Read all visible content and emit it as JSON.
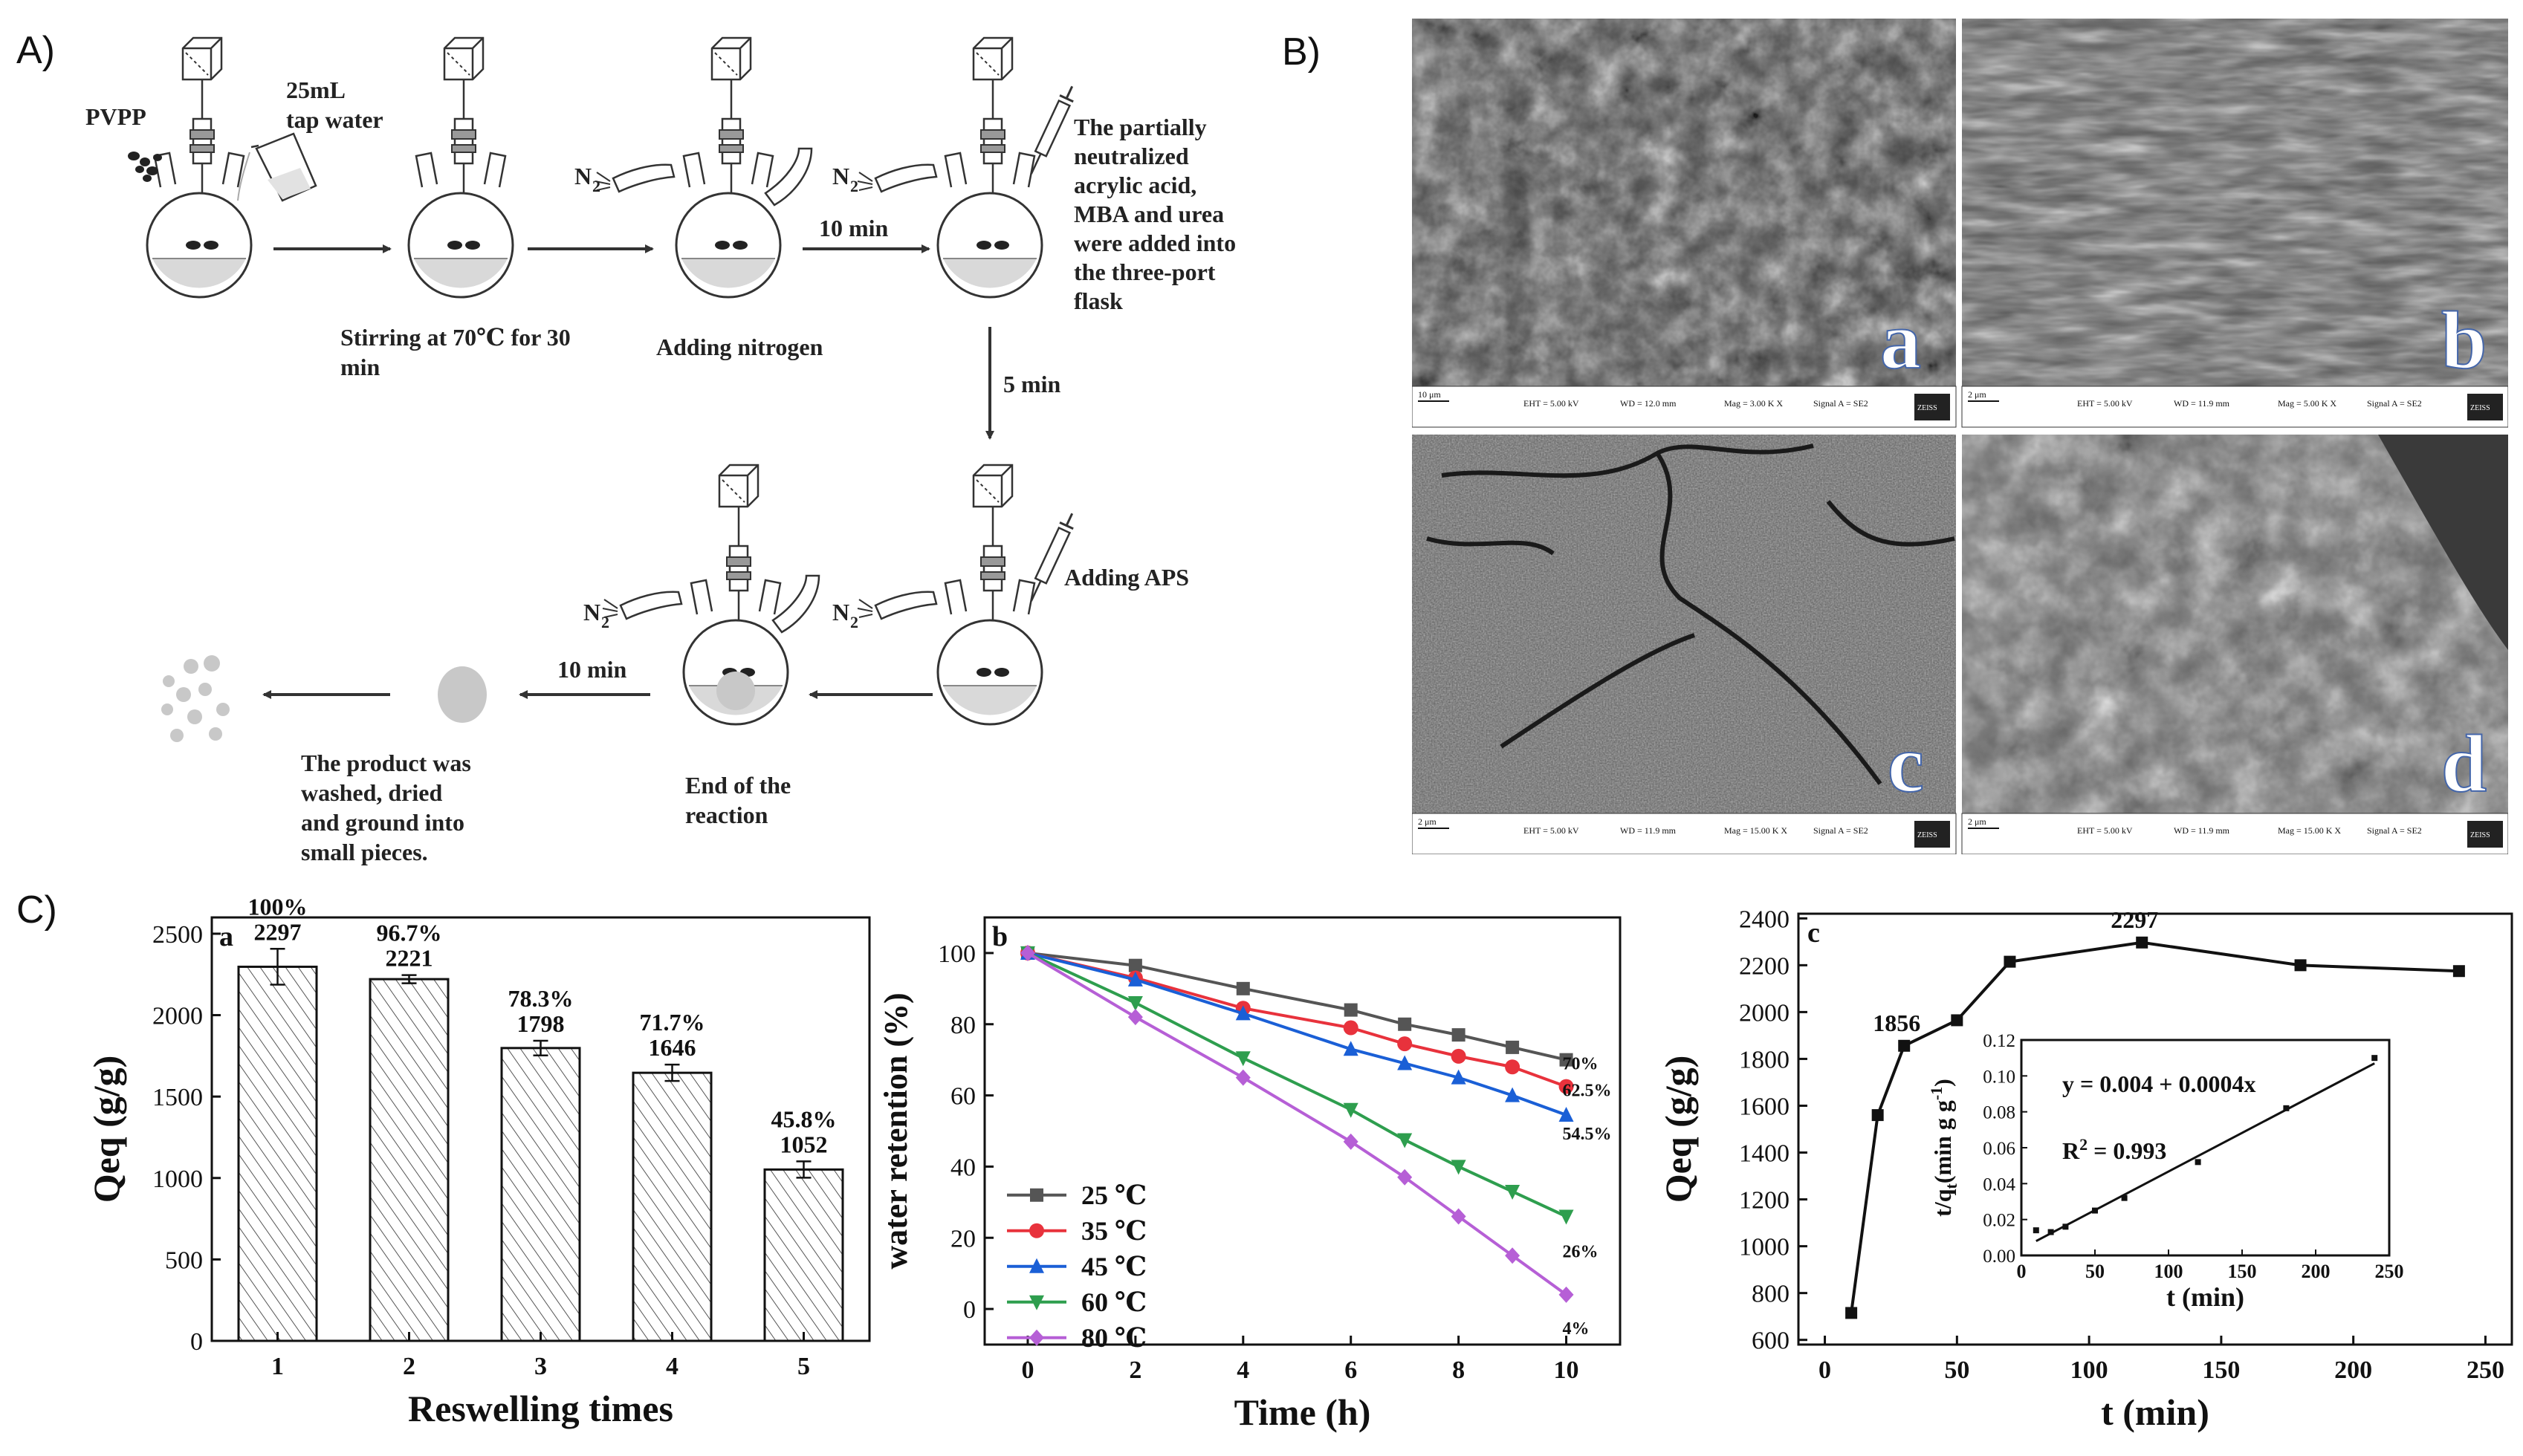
{
  "panels": {
    "A": "A)",
    "B": "B)",
    "C": "C)"
  },
  "scheme": {
    "pvpp": "PVPP",
    "water_line1": "25mL",
    "water_line2": "tap water",
    "n2": "N",
    "n2_sub": "2",
    "step1_line1": "Stirring at 70℃ for 30",
    "step1_line2": "min",
    "step2": "Adding nitrogen",
    "arrow_10min_a": "10 min",
    "step3_lines": [
      "The partially",
      "neutralized",
      "acrylic acid,",
      "MBA and urea",
      "were added into",
      "the three-port",
      "flask"
    ],
    "arrow_5min": "5 min",
    "step4": "Adding APS",
    "step5_line1": "End of the",
    "step5_line2": "reaction",
    "arrow_10min_b": "10 min",
    "step6_lines": [
      "The product was",
      "washed,    dried",
      "and ground into",
      "small pieces."
    ]
  },
  "sem": {
    "images": [
      {
        "letter": "a",
        "scalebar": "10 μm",
        "eht": "EHT =  5.00 kV",
        "wd": "WD = 12.0 mm",
        "mag": "Mag =   3.00 K X",
        "signal": "Signal A = SE2",
        "logo": "ZEISS"
      },
      {
        "letter": "b",
        "scalebar": "2 μm",
        "eht": "EHT =  5.00 kV",
        "wd": "WD = 11.9 mm",
        "mag": "Mag =   5.00 K X",
        "signal": "Signal A = SE2",
        "logo": "ZEISS"
      },
      {
        "letter": "c",
        "scalebar": "2 μm",
        "eht": "EHT =  5.00 kV",
        "wd": "WD = 11.9 mm",
        "mag": "Mag =  15.00 K X",
        "signal": "Signal A = SE2",
        "logo": "ZEISS"
      },
      {
        "letter": "d",
        "scalebar": "2 μm",
        "eht": "EHT =  5.00 kV",
        "wd": "WD = 11.9 mm",
        "mag": "Mag =  15.00 K X",
        "signal": "Signal A = SE2",
        "logo": "ZEISS"
      }
    ]
  },
  "chart_data": [
    {
      "type": "bar",
      "panel_letter": "a",
      "categories": [
        "1",
        "2",
        "3",
        "4",
        "5"
      ],
      "values": [
        2297,
        2221,
        1798,
        1646,
        1052
      ],
      "errors": [
        110,
        25,
        45,
        50,
        50
      ],
      "percent_labels": [
        "100%",
        "96.7%",
        "78.3%",
        "71.7%",
        "45.8%"
      ],
      "value_labels": [
        "2297",
        "2221",
        "1798",
        "1646",
        "1052"
      ],
      "xlabel": "Reswelling times",
      "ylabel": "Qeq (g/g)",
      "ylim": [
        0,
        2600
      ],
      "yticks": [
        0,
        500,
        1000,
        1500,
        2000,
        2500
      ],
      "hatch": true
    },
    {
      "type": "line",
      "panel_letter": "b",
      "x": [
        0,
        2,
        4,
        6,
        7,
        8,
        9,
        10
      ],
      "series": [
        {
          "name": "25 ℃",
          "color": "#555555",
          "marker": "square",
          "values": [
            100,
            96.5,
            90,
            84,
            80,
            77,
            73.5,
            70
          ],
          "end_label": "70%"
        },
        {
          "name": "35 ℃",
          "color": "#e8323c",
          "marker": "circle",
          "values": [
            100,
            93,
            84.5,
            79,
            74.5,
            71,
            68,
            62.5
          ],
          "end_label": "62.5%"
        },
        {
          "name": "45 ℃",
          "color": "#1a5fd6",
          "marker": "triangle-up",
          "values": [
            100,
            92.5,
            83,
            73,
            69,
            65,
            60,
            54.5
          ],
          "end_label": "54.5%"
        },
        {
          "name": "60 ℃",
          "color": "#2e9e4e",
          "marker": "triangle-down",
          "values": [
            100,
            86,
            70.5,
            56,
            47.5,
            40,
            33,
            26
          ],
          "end_label": "26%"
        },
        {
          "name": "80 ℃",
          "color": "#b65fd6",
          "marker": "diamond",
          "values": [
            100,
            82,
            65,
            47,
            37,
            26,
            15,
            4
          ],
          "end_label": "4%"
        }
      ],
      "xlabel": "Time (h)",
      "ylabel": "water retention (%)",
      "xlim": [
        -0.8,
        11
      ],
      "ylim": [
        -10,
        110
      ],
      "xticks": [
        0,
        2,
        4,
        6,
        8,
        10
      ],
      "yticks": [
        0,
        20,
        40,
        60,
        80,
        100
      ],
      "legend_placement": "lower-left"
    },
    {
      "type": "line",
      "panel_letter": "c",
      "x": [
        10,
        20,
        30,
        50,
        70,
        120,
        180,
        240
      ],
      "values": [
        715,
        1560,
        1856,
        1965,
        2215,
        2297,
        2200,
        2175
      ],
      "point_labels": [
        {
          "x": 30,
          "text": "1856"
        },
        {
          "x": 120,
          "text": "2297"
        }
      ],
      "xlabel": "t (min)",
      "ylabel": "Qeq (g/g)",
      "xlim": [
        -10,
        260
      ],
      "ylim": [
        580,
        2420
      ],
      "xticks": [
        0,
        50,
        100,
        150,
        200,
        250
      ],
      "yticks": [
        600,
        800,
        1000,
        1200,
        1400,
        1600,
        1800,
        2000,
        2200,
        2400
      ],
      "inset": {
        "type": "scatter",
        "x": [
          10,
          20,
          30,
          50,
          70,
          120,
          180,
          240
        ],
        "values": [
          0.014,
          0.013,
          0.016,
          0.025,
          0.032,
          0.052,
          0.082,
          0.11
        ],
        "fit_line": [
          [
            10,
            0.008
          ],
          [
            240,
            0.107
          ]
        ],
        "equation": "y = 0.004 + 0.0004x",
        "r2_label": "R",
        "r2_sup": "2",
        "r2_value": " = 0.993",
        "xlabel": "t (min)",
        "ylabel_main": "t/q",
        "ylabel_sub": "t",
        "ylabel_rest": "(min g g",
        "ylabel_sup": "-1",
        "ylabel_end": ")",
        "xlim": [
          0,
          250
        ],
        "ylim": [
          0,
          0.12
        ],
        "xticks": [
          0,
          50,
          100,
          150,
          200,
          250
        ],
        "yticks": [
          0.0,
          0.02,
          0.04,
          0.06,
          0.08,
          0.1,
          0.12
        ],
        "ytick_labels": [
          "0.00",
          "0.02",
          "0.04",
          "0.06",
          "0.08",
          "0.10",
          "0.12"
        ]
      }
    }
  ]
}
